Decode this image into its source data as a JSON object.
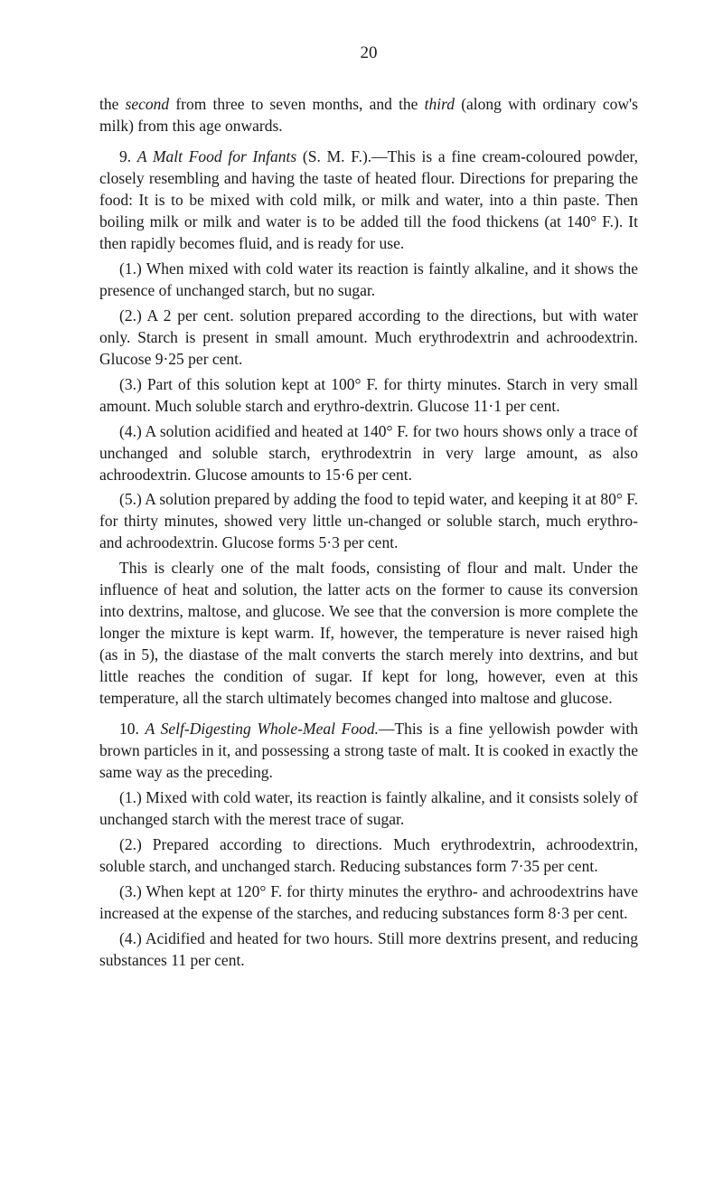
{
  "pageNumber": "20",
  "para1": "the second from three to seven months, and the third (along with ordinary cow's milk) from this age onwards.",
  "para2_label": "9. A Malt Food for Infants",
  "para2_rest": " (S. M. F.).—This is a fine cream-coloured powder, closely resembling and having the taste of heated flour. Directions for preparing the food: It is to be mixed with cold milk, or milk and water, into a thin paste. Then boiling milk or milk and water is to be added till the food thickens (at 140° F.). It then rapidly becomes fluid, and is ready for use.",
  "item1": "(1.) When mixed with cold water its reaction is faintly alkaline, and it shows the presence of unchanged starch, but no sugar.",
  "item2": "(2.) A 2 per cent. solution prepared according to the directions, but with water only. Starch is present in small amount. Much erythrodextrin and achroodextrin. Glucose 9·25 per cent.",
  "item3": "(3.) Part of this solution kept at 100° F. for thirty minutes. Starch in very small amount. Much soluble starch and erythro-dextrin. Glucose 11·1 per cent.",
  "item4": "(4.) A solution acidified and heated at 140° F. for two hours shows only a trace of unchanged and soluble starch, erythrodextrin in very large amount, as also achroodextrin. Glucose amounts to 15·6 per cent.",
  "item5": "(5.) A solution prepared by adding the food to tepid water, and keeping it at 80° F. for thirty minutes, showed very little un-changed or soluble starch, much erythro- and achroodextrin. Glucose forms 5·3 per cent.",
  "para3": "This is clearly one of the malt foods, consisting of flour and malt. Under the influence of heat and solution, the latter acts on the former to cause its conversion into dextrins, maltose, and glucose. We see that the conversion is more complete the longer the mixture is kept warm. If, however, the temperature is never raised high (as in 5), the diastase of the malt converts the starch merely into dextrins, and but little reaches the condition of sugar. If kept for long, however, even at this temperature, all the starch ultimately becomes changed into maltose and glucose.",
  "para4_label": "10. A Self-Digesting Whole-Meal Food.",
  "para4_rest": "—This is a fine yellowish powder with brown particles in it, and possessing a strong taste of malt. It is cooked in exactly the same way as the preceding.",
  "item10_1": "(1.) Mixed with cold water, its reaction is faintly alkaline, and it consists solely of unchanged starch with the merest trace of sugar.",
  "item10_2": "(2.) Prepared according to directions. Much erythrodextrin, achroodextrin, soluble starch, and unchanged starch. Reducing substances form 7·35 per cent.",
  "item10_3": "(3.) When kept at 120° F. for thirty minutes the erythro- and achroodextrins have increased at the expense of the starches, and reducing substances form 8·3 per cent.",
  "item10_4": "(4.) Acidified and heated for two hours. Still more dextrins present, and reducing substances 11 per cent."
}
